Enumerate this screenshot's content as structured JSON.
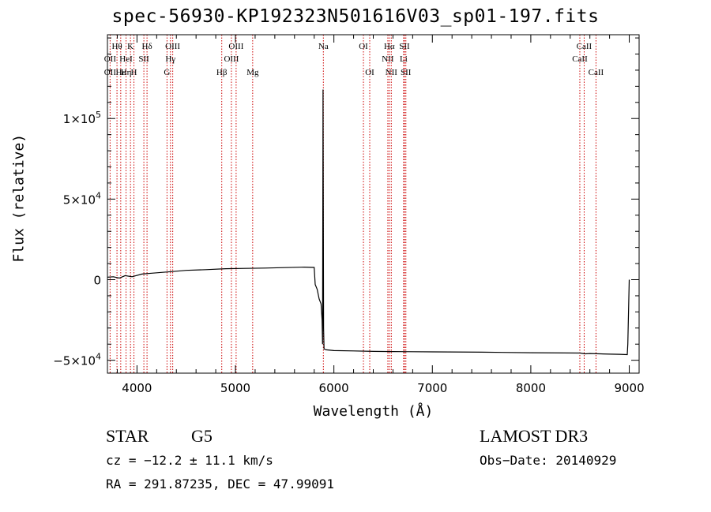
{
  "chart_data": {
    "type": "line",
    "title": "spec-56930-KP192323N501616V03_sp01-197.fits",
    "xlabel": "Wavelength (Å)",
    "ylabel": "Flux (relative)",
    "xlim": [
      3700,
      9100
    ],
    "ylim": [
      -58000,
      152000
    ],
    "x_ticks": [
      4000,
      5000,
      6000,
      7000,
      8000,
      9000
    ],
    "x_tick_labels": [
      "4000",
      "5000",
      "6000",
      "7000",
      "8000",
      "9000"
    ],
    "y_ticks": [
      -50000,
      0,
      50000,
      100000
    ],
    "y_tick_labels": [
      {
        "mantissa": "−5×10",
        "exp": "4"
      },
      {
        "mantissa": "0",
        "exp": ""
      },
      {
        "mantissa": "5×10",
        "exp": "4"
      },
      {
        "mantissa": "1×10",
        "exp": "5"
      }
    ],
    "series": [
      {
        "name": "flux",
        "x": [
          3700,
          3760,
          3820,
          3880,
          3950,
          4050,
          4150,
          4250,
          4350,
          4500,
          4700,
          4900,
          5100,
          5300,
          5500,
          5700,
          5800,
          5810,
          5830,
          5850,
          5870,
          5880,
          5885,
          5890,
          5895,
          5900,
          5920,
          6000,
          6200,
          6400,
          6600,
          6800,
          7000,
          7500,
          8000,
          8500,
          8550,
          8600,
          8700,
          8800,
          8900,
          8980,
          8985,
          9000
        ],
        "y": [
          1500,
          1800,
          1000,
          2500,
          1800,
          3500,
          4000,
          4500,
          5000,
          5800,
          6200,
          6800,
          7000,
          7200,
          7500,
          7800,
          7600,
          -3000,
          -6000,
          -12000,
          -15000,
          -25000,
          -40000,
          118000,
          -30000,
          -43000,
          -43500,
          -44000,
          -44200,
          -44500,
          -44600,
          -44700,
          -44800,
          -45000,
          -45300,
          -45500,
          -46000,
          -45800,
          -46000,
          -46200,
          -46300,
          -46500,
          -40000,
          0
        ]
      }
    ],
    "line_groups": [
      {
        "name": "top",
        "labels": [
          {
            "text": "Hθ",
            "wl": 3797
          },
          {
            "text": "K",
            "wl": 3934
          },
          {
            "text": "Hδ",
            "wl": 4102
          },
          {
            "text": "OIII",
            "wl": 4363
          },
          {
            "text": "OIII",
            "wl": 5007
          },
          {
            "text": "Na",
            "wl": 5893
          },
          {
            "text": "OI",
            "wl": 6300
          },
          {
            "text": "Hα",
            "wl": 6563
          },
          {
            "text": "SII",
            "wl": 6717
          },
          {
            "text": "CaII",
            "wl": 8542
          }
        ]
      },
      {
        "name": "middle",
        "labels": [
          {
            "text": "OII",
            "wl": 3727
          },
          {
            "text": "HeI",
            "wl": 3889
          },
          {
            "text": "SII",
            "wl": 4070
          },
          {
            "text": "Hγ",
            "wl": 4340
          },
          {
            "text": "OIII",
            "wl": 4959
          },
          {
            "text": "NII",
            "wl": 6548
          },
          {
            "text": "Li",
            "wl": 6708
          },
          {
            "text": "CaII",
            "wl": 8498
          }
        ]
      },
      {
        "name": "bottom",
        "labels": [
          {
            "text": "OII",
            "wl": 3727
          },
          {
            "text": "Hε",
            "wl": 3835
          },
          {
            "text": "Hη",
            "wl": 3889
          },
          {
            "text": "H",
            "wl": 3969
          },
          {
            "text": "G",
            "wl": 4305
          },
          {
            "text": "Hβ",
            "wl": 4861
          },
          {
            "text": "Mg",
            "wl": 5175
          },
          {
            "text": "OI",
            "wl": 6364
          },
          {
            "text": "NII",
            "wl": 6583
          },
          {
            "text": "SII",
            "wl": 6731
          },
          {
            "text": "CaII",
            "wl": 8662
          }
        ]
      }
    ],
    "line_wavelengths": [
      3727,
      3797,
      3835,
      3889,
      3934,
      3969,
      4070,
      4102,
      4305,
      4340,
      4363,
      4861,
      4959,
      5007,
      5175,
      5893,
      6300,
      6364,
      6548,
      6563,
      6583,
      6708,
      6717,
      6731,
      8498,
      8542,
      8662
    ]
  },
  "info": {
    "object_class": "STAR",
    "subclass": "G5",
    "survey": "LAMOST DR3",
    "redshift": "cz = −12.2 ± 11.1 km/s",
    "obs_date": "Obs−Date: 20140929",
    "coords": "RA = 291.87235, DEC =  47.99091"
  },
  "colors": {
    "line_marker": "#cc0000",
    "spectrum": "#000000",
    "axes": "#000000"
  }
}
